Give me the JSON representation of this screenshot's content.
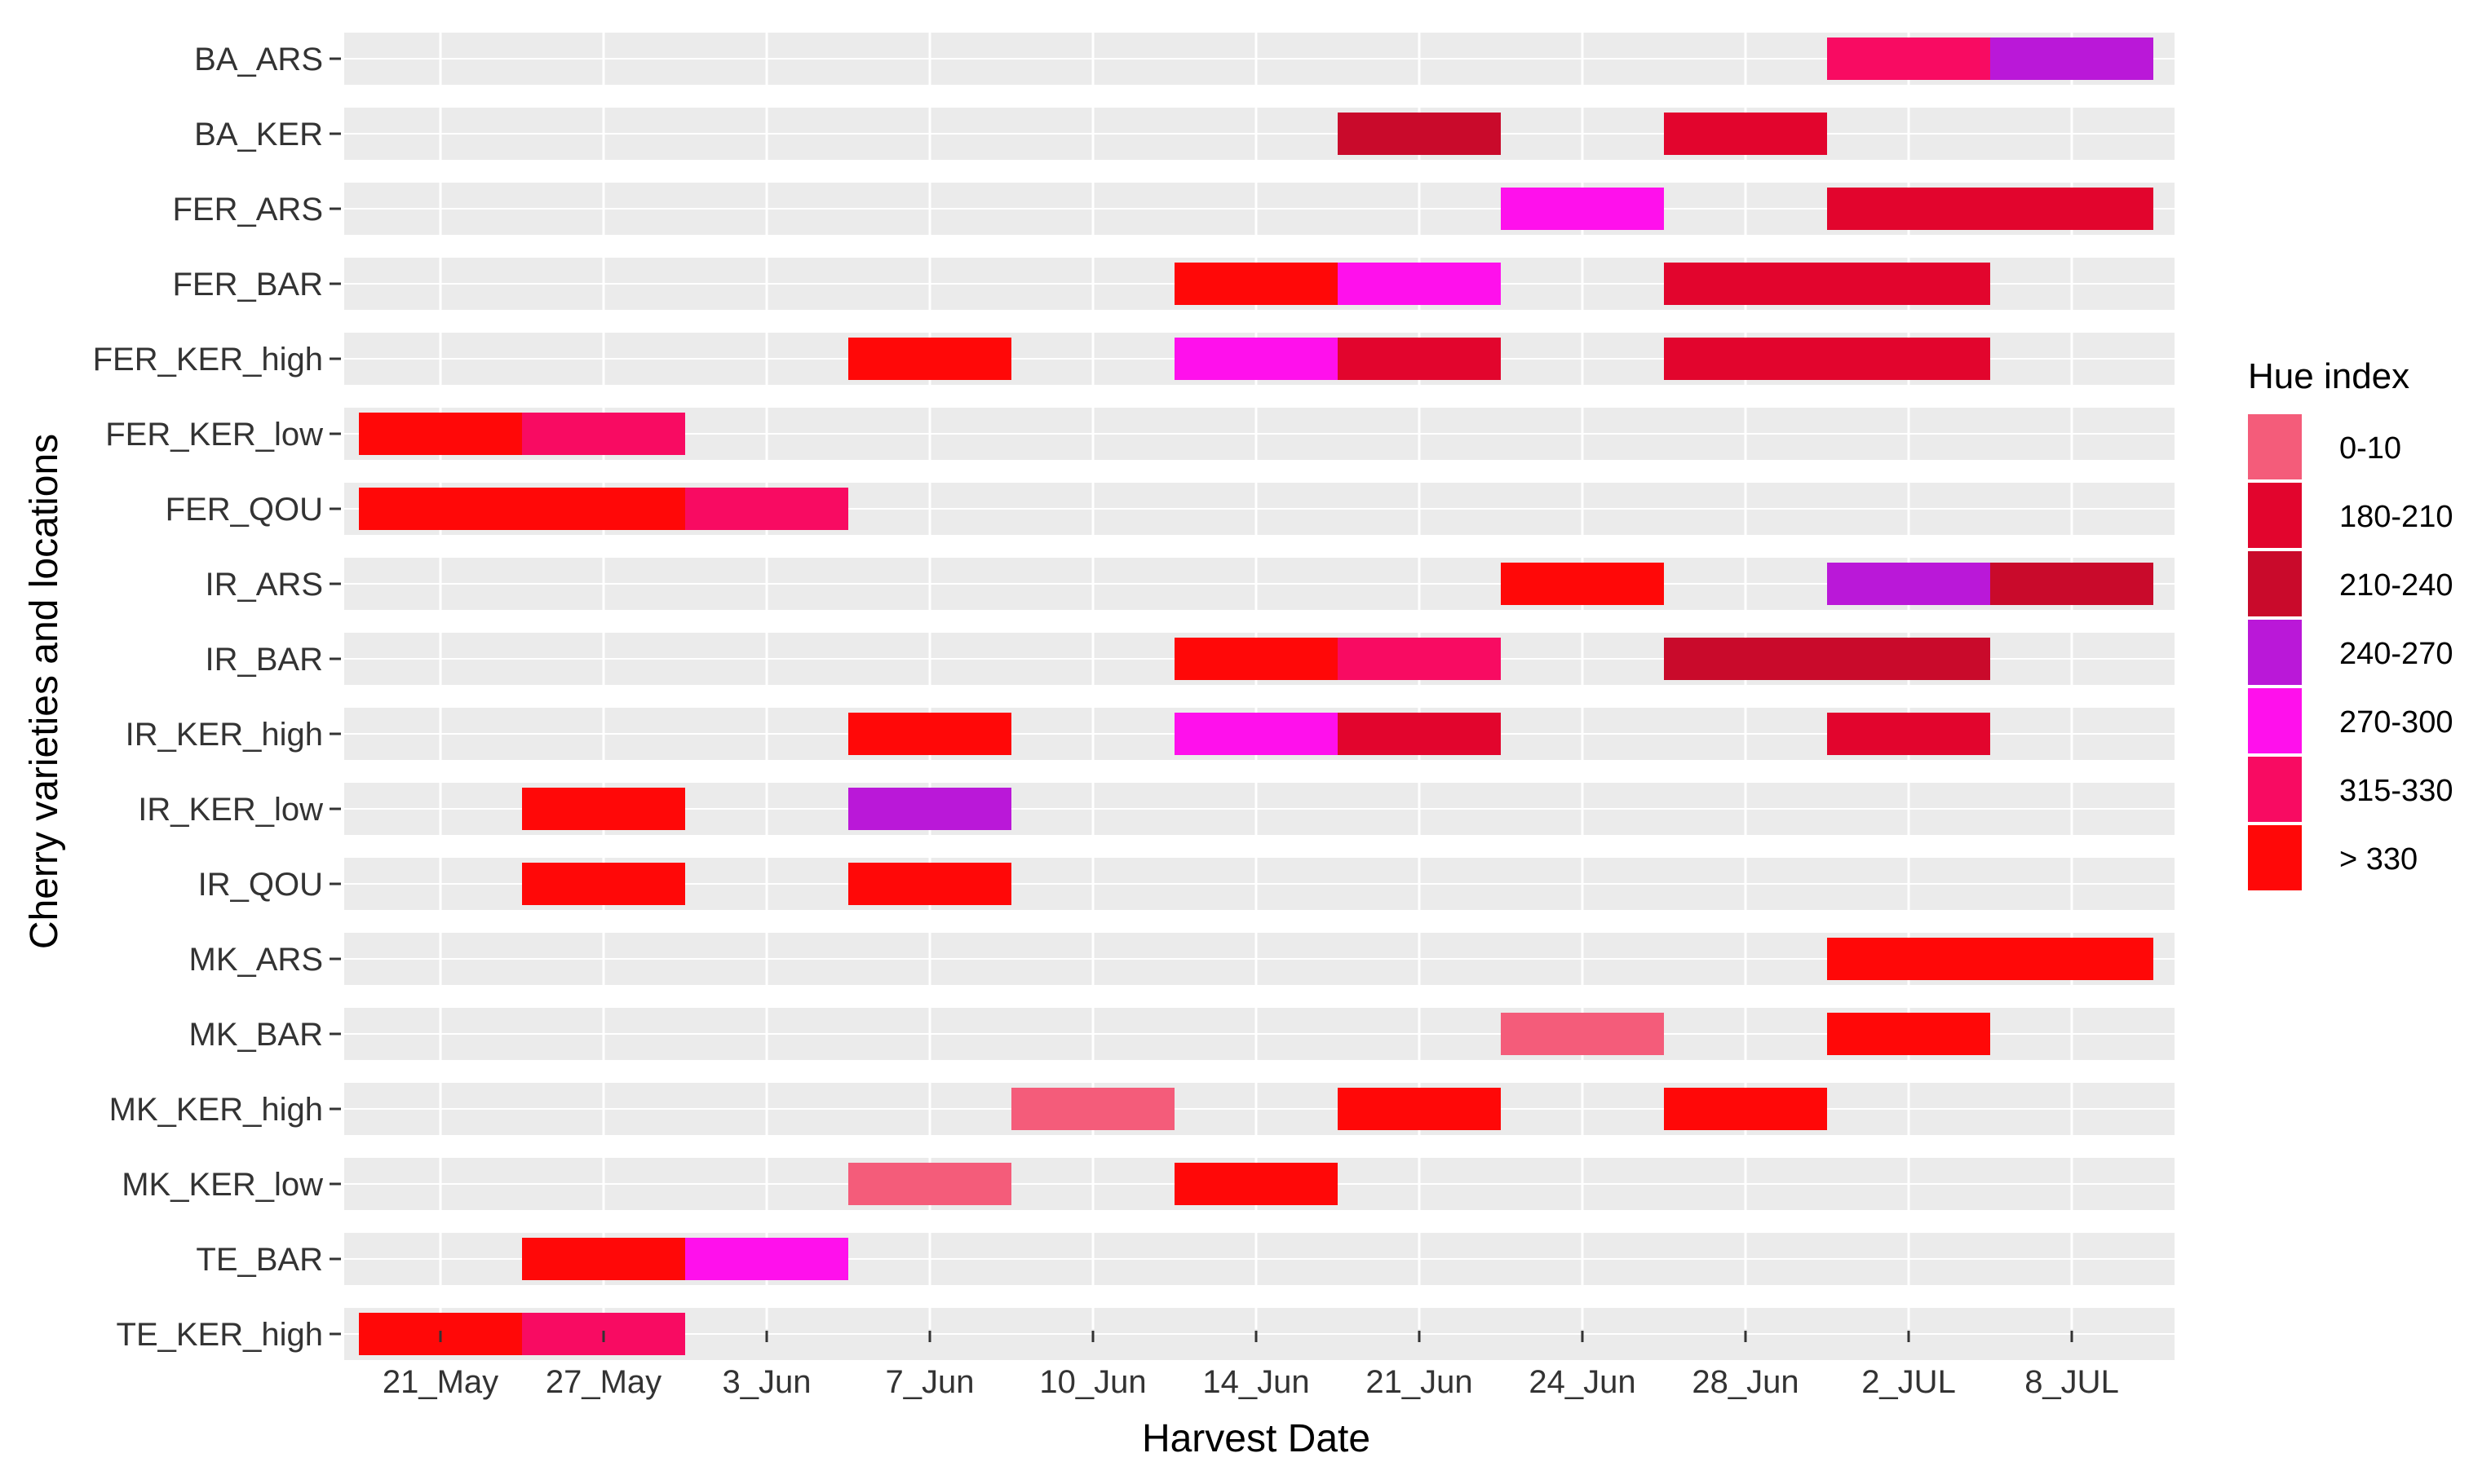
{
  "chart_data": {
    "type": "bar",
    "subtype": "timeline-tiles",
    "title": "",
    "xlabel": "Harvest Date",
    "ylabel": "Cherry varieties and locations",
    "x_ticks": [
      "21_May",
      "27_May",
      "3_Jun",
      "7_Jun",
      "10_Jun",
      "14_Jun",
      "21_Jun",
      "24_Jun",
      "28_Jun",
      "2_JUL",
      "8_JUL"
    ],
    "categories": [
      "BA_ARS",
      "BA_KER",
      "FER_ARS",
      "FER_BAR",
      "FER_KER_high",
      "FER_KER_low",
      "FER_QOU",
      "IR_ARS",
      "IR_BAR",
      "IR_KER_high",
      "IR_KER_low",
      "IR_QOU",
      "MK_ARS",
      "MK_BAR",
      "MK_KER_high",
      "MK_KER_low",
      "TE_BAR",
      "TE_KER_high"
    ],
    "legend": {
      "title": "Hue index",
      "position": "right",
      "entries": [
        {
          "label": "0-10",
          "color": "#F45C7A"
        },
        {
          "label": "180-210",
          "color": "#E2052D"
        },
        {
          "label": "210-240",
          "color": "#C90A2B"
        },
        {
          "label": "240-270",
          "color": "#BA18D8"
        },
        {
          "label": "270-300",
          "color": "#FF10EC"
        },
        {
          "label": "315-330",
          "color": "#F80B62"
        },
        {
          "label": "> 330",
          "color": "#FF0808"
        }
      ]
    },
    "series": [
      {
        "name": "BA_ARS",
        "cells": [
          {
            "date": "2_JUL",
            "hue": "315-330"
          },
          {
            "date": "8_JUL",
            "hue": "240-270"
          }
        ]
      },
      {
        "name": "BA_KER",
        "cells": [
          {
            "date": "21_Jun",
            "hue": "210-240"
          },
          {
            "date": "28_Jun",
            "hue": "180-210"
          }
        ]
      },
      {
        "name": "FER_ARS",
        "cells": [
          {
            "date": "24_Jun",
            "hue": "270-300"
          },
          {
            "date": "2_JUL",
            "hue": "180-210"
          },
          {
            "date": "8_JUL",
            "hue": "180-210"
          }
        ]
      },
      {
        "name": "FER_BAR",
        "cells": [
          {
            "date": "14_Jun",
            "hue": "> 330"
          },
          {
            "date": "21_Jun",
            "hue": "270-300"
          },
          {
            "date": "28_Jun",
            "hue": "180-210"
          },
          {
            "date": "2_JUL",
            "hue": "180-210"
          }
        ]
      },
      {
        "name": "FER_KER_high",
        "cells": [
          {
            "date": "7_Jun",
            "hue": "> 330"
          },
          {
            "date": "14_Jun",
            "hue": "270-300"
          },
          {
            "date": "21_Jun",
            "hue": "180-210"
          },
          {
            "date": "28_Jun",
            "hue": "180-210"
          },
          {
            "date": "2_JUL",
            "hue": "180-210"
          }
        ]
      },
      {
        "name": "FER_KER_low",
        "cells": [
          {
            "date": "21_May",
            "hue": "> 330"
          },
          {
            "date": "27_May",
            "hue": "315-330"
          }
        ]
      },
      {
        "name": "FER_QOU",
        "cells": [
          {
            "date": "21_May",
            "hue": "> 330"
          },
          {
            "date": "27_May",
            "hue": "> 330"
          },
          {
            "date": "3_Jun",
            "hue": "315-330"
          }
        ]
      },
      {
        "name": "IR_ARS",
        "cells": [
          {
            "date": "24_Jun",
            "hue": "> 330"
          },
          {
            "date": "2_JUL",
            "hue": "240-270"
          },
          {
            "date": "8_JUL",
            "hue": "210-240"
          }
        ]
      },
      {
        "name": "IR_BAR",
        "cells": [
          {
            "date": "14_Jun",
            "hue": "> 330"
          },
          {
            "date": "21_Jun",
            "hue": "315-330"
          },
          {
            "date": "28_Jun",
            "hue": "210-240"
          },
          {
            "date": "2_JUL",
            "hue": "210-240"
          }
        ]
      },
      {
        "name": "IR_KER_high",
        "cells": [
          {
            "date": "7_Jun",
            "hue": "> 330"
          },
          {
            "date": "14_Jun",
            "hue": "270-300"
          },
          {
            "date": "21_Jun",
            "hue": "180-210"
          },
          {
            "date": "2_JUL",
            "hue": "180-210"
          }
        ]
      },
      {
        "name": "IR_KER_low",
        "cells": [
          {
            "date": "27_May",
            "hue": "> 330"
          },
          {
            "date": "7_Jun",
            "hue": "240-270"
          }
        ]
      },
      {
        "name": "IR_QOU",
        "cells": [
          {
            "date": "27_May",
            "hue": "> 330"
          },
          {
            "date": "7_Jun",
            "hue": "> 330"
          }
        ]
      },
      {
        "name": "MK_ARS",
        "cells": [
          {
            "date": "2_JUL",
            "hue": "> 330"
          },
          {
            "date": "8_JUL",
            "hue": "> 330"
          }
        ]
      },
      {
        "name": "MK_BAR",
        "cells": [
          {
            "date": "24_Jun",
            "hue": "0-10"
          },
          {
            "date": "2_JUL",
            "hue": "> 330"
          }
        ]
      },
      {
        "name": "MK_KER_high",
        "cells": [
          {
            "date": "10_Jun",
            "hue": "0-10"
          },
          {
            "date": "21_Jun",
            "hue": "> 330"
          },
          {
            "date": "28_Jun",
            "hue": "> 330"
          }
        ]
      },
      {
        "name": "MK_KER_low",
        "cells": [
          {
            "date": "7_Jun",
            "hue": "0-10"
          },
          {
            "date": "14_Jun",
            "hue": "> 330"
          }
        ]
      },
      {
        "name": "TE_BAR",
        "cells": [
          {
            "date": "27_May",
            "hue": "> 330"
          },
          {
            "date": "3_Jun",
            "hue": "270-300"
          }
        ]
      },
      {
        "name": "TE_KER_high",
        "cells": [
          {
            "date": "21_May",
            "hue": "> 330"
          },
          {
            "date": "27_May",
            "hue": "315-330"
          }
        ]
      }
    ]
  },
  "colors": {
    "panel_band": "#EBEBEB",
    "gridline": "#FFFFFF",
    "tick": "#333333"
  }
}
